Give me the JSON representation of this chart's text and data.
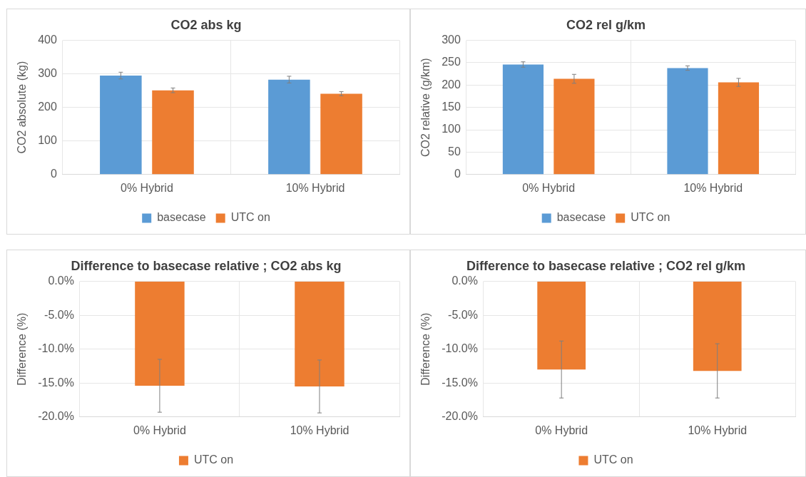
{
  "chart_data": [
    {
      "type": "bar",
      "title": "CO2 abs kg",
      "ylabel": "CO2 absolute (kg)",
      "categories": [
        "0% Hybrid",
        "10% Hybrid"
      ],
      "series": [
        {
          "name": "basecase",
          "color": "#5b9bd5",
          "values": [
            295,
            283
          ],
          "errors": [
            10,
            10
          ]
        },
        {
          "name": "UTC on",
          "color": "#ed7d31",
          "values": [
            251,
            241
          ],
          "errors": [
            7,
            6
          ]
        }
      ],
      "ylim": [
        0,
        400
      ],
      "yticks": [
        0,
        100,
        200,
        300,
        400
      ],
      "grid": true,
      "legend": "bottom"
    },
    {
      "type": "bar",
      "title": "CO2 rel g/km",
      "ylabel": "CO2 relative (g/km)",
      "categories": [
        "0% Hybrid",
        "10% Hybrid"
      ],
      "series": [
        {
          "name": "basecase",
          "color": "#5b9bd5",
          "values": [
            246,
            238
          ],
          "errors": [
            6,
            5
          ]
        },
        {
          "name": "UTC on",
          "color": "#ed7d31",
          "values": [
            214,
            206
          ],
          "errors": [
            10,
            9
          ]
        }
      ],
      "ylim": [
        0,
        300
      ],
      "yticks": [
        0,
        50,
        100,
        150,
        200,
        250,
        300
      ],
      "grid": true,
      "legend": "bottom"
    },
    {
      "type": "bar",
      "title": "Difference to basecase relative ; CO2 abs kg",
      "ylabel": "Difference (%)",
      "categories": [
        "0% Hybrid",
        "10% Hybrid"
      ],
      "series": [
        {
          "name": "UTC on",
          "color": "#ed7d31",
          "values": [
            -15.4,
            -15.5
          ],
          "errors": [
            3.9,
            3.9
          ]
        }
      ],
      "ylim": [
        -20,
        0
      ],
      "yticks": [
        {
          "value": 0,
          "label": "0.0%"
        },
        {
          "value": -5,
          "label": "-5.0%"
        },
        {
          "value": -10,
          "label": "-10.0%"
        },
        {
          "value": -15,
          "label": "-15.0%"
        },
        {
          "value": -20,
          "label": "-20.0%"
        }
      ],
      "grid": true,
      "legend": "bottom"
    },
    {
      "type": "bar",
      "title": "Difference to basecase relative ; CO2 rel g/km",
      "ylabel": "Difference (%)",
      "categories": [
        "0% Hybrid",
        "10% Hybrid"
      ],
      "series": [
        {
          "name": "UTC on",
          "color": "#ed7d31",
          "values": [
            -13.0,
            -13.2
          ],
          "errors": [
            4.2,
            4.0
          ]
        }
      ],
      "ylim": [
        -20,
        0
      ],
      "yticks": [
        {
          "value": 0,
          "label": "0.0%"
        },
        {
          "value": -5,
          "label": "-5.0%"
        },
        {
          "value": -10,
          "label": "-10.0%"
        },
        {
          "value": -15,
          "label": "-15.0%"
        },
        {
          "value": -20,
          "label": "-20.0%"
        }
      ],
      "grid": true,
      "legend": "bottom"
    }
  ]
}
